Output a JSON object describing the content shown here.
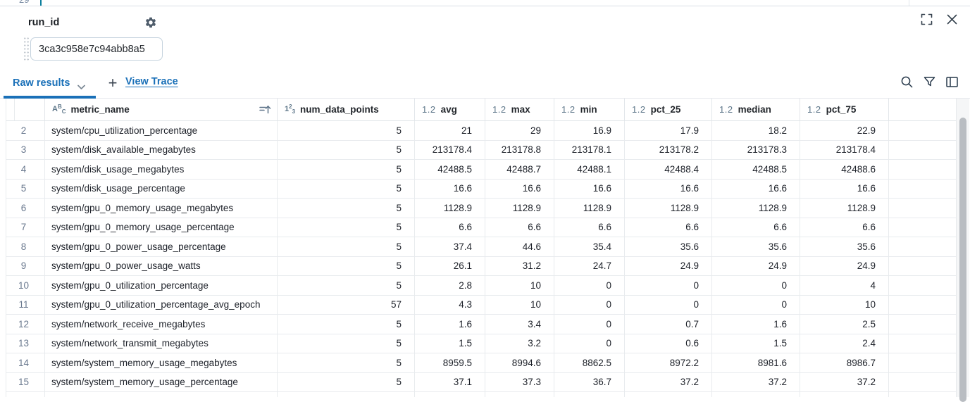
{
  "backdrop": {
    "partial_row_number": "29"
  },
  "panel": {
    "field_label": "run_id",
    "field_value": "3ca3c958e7c94abb8a5",
    "tabs": {
      "active_label": "Raw results",
      "add_label": "+",
      "view_trace_label": "View Trace"
    },
    "accent_color": "#1a70b8"
  },
  "icons": {
    "gear": "gear-icon",
    "chevron_down": "chevron-down-icon",
    "search": "magnifier",
    "filter": "funnel",
    "columns": "column-panel",
    "expand": "fullscreen-corners",
    "close": "x-mark",
    "sort": "sort-ascending",
    "drag": "dot-grid-handle"
  },
  "type_icons": {
    "string": [
      "A",
      "B",
      "C"
    ],
    "int": [
      "1",
      "2",
      "3"
    ],
    "float": [
      "1.2"
    ]
  },
  "table": {
    "columns": [
      {
        "label": "metric_name",
        "type": "string",
        "sortable": true
      },
      {
        "label": "num_data_points",
        "type": "int"
      },
      {
        "label": "avg",
        "type": "float"
      },
      {
        "label": "max",
        "type": "float"
      },
      {
        "label": "min",
        "type": "float"
      },
      {
        "label": "pct_25",
        "type": "float"
      },
      {
        "label": "median",
        "type": "float"
      },
      {
        "label": "pct_75",
        "type": "float"
      }
    ],
    "rows": [
      {
        "num": "2",
        "cells": [
          "system/cpu_utilization_percentage",
          "5",
          "21",
          "29",
          "16.9",
          "17.9",
          "18.2",
          "22.9"
        ]
      },
      {
        "num": "3",
        "cells": [
          "system/disk_available_megabytes",
          "5",
          "213178.4",
          "213178.8",
          "213178.1",
          "213178.2",
          "213178.3",
          "213178.4"
        ]
      },
      {
        "num": "4",
        "cells": [
          "system/disk_usage_megabytes",
          "5",
          "42488.5",
          "42488.7",
          "42488.1",
          "42488.4",
          "42488.5",
          "42488.6"
        ]
      },
      {
        "num": "5",
        "cells": [
          "system/disk_usage_percentage",
          "5",
          "16.6",
          "16.6",
          "16.6",
          "16.6",
          "16.6",
          "16.6"
        ]
      },
      {
        "num": "6",
        "cells": [
          "system/gpu_0_memory_usage_megabytes",
          "5",
          "1128.9",
          "1128.9",
          "1128.9",
          "1128.9",
          "1128.9",
          "1128.9"
        ]
      },
      {
        "num": "7",
        "cells": [
          "system/gpu_0_memory_usage_percentage",
          "5",
          "6.6",
          "6.6",
          "6.6",
          "6.6",
          "6.6",
          "6.6"
        ]
      },
      {
        "num": "8",
        "cells": [
          "system/gpu_0_power_usage_percentage",
          "5",
          "37.4",
          "44.6",
          "35.4",
          "35.6",
          "35.6",
          "35.6"
        ]
      },
      {
        "num": "9",
        "cells": [
          "system/gpu_0_power_usage_watts",
          "5",
          "26.1",
          "31.2",
          "24.7",
          "24.9",
          "24.9",
          "24.9"
        ]
      },
      {
        "num": "10",
        "cells": [
          "system/gpu_0_utilization_percentage",
          "5",
          "2.8",
          "10",
          "0",
          "0",
          "0",
          "4"
        ]
      },
      {
        "num": "11",
        "cells": [
          "system/gpu_0_utilization_percentage_avg_epoch",
          "57",
          "4.3",
          "10",
          "0",
          "0",
          "0",
          "10"
        ]
      },
      {
        "num": "12",
        "cells": [
          "system/network_receive_megabytes",
          "5",
          "1.6",
          "3.4",
          "0",
          "0.7",
          "1.6",
          "2.5"
        ]
      },
      {
        "num": "13",
        "cells": [
          "system/network_transmit_megabytes",
          "5",
          "1.5",
          "3.2",
          "0",
          "0.6",
          "1.5",
          "2.4"
        ]
      },
      {
        "num": "14",
        "cells": [
          "system/system_memory_usage_megabytes",
          "5",
          "8959.5",
          "8994.6",
          "8862.5",
          "8972.2",
          "8981.6",
          "8986.7"
        ]
      },
      {
        "num": "15",
        "cells": [
          "system/system_memory_usage_percentage",
          "5",
          "37.1",
          "37.3",
          "36.7",
          "37.2",
          "37.2",
          "37.2"
        ]
      },
      {
        "num": "",
        "cells": [
          "",
          "",
          "",
          "",
          "",
          "",
          "",
          ""
        ]
      }
    ]
  }
}
